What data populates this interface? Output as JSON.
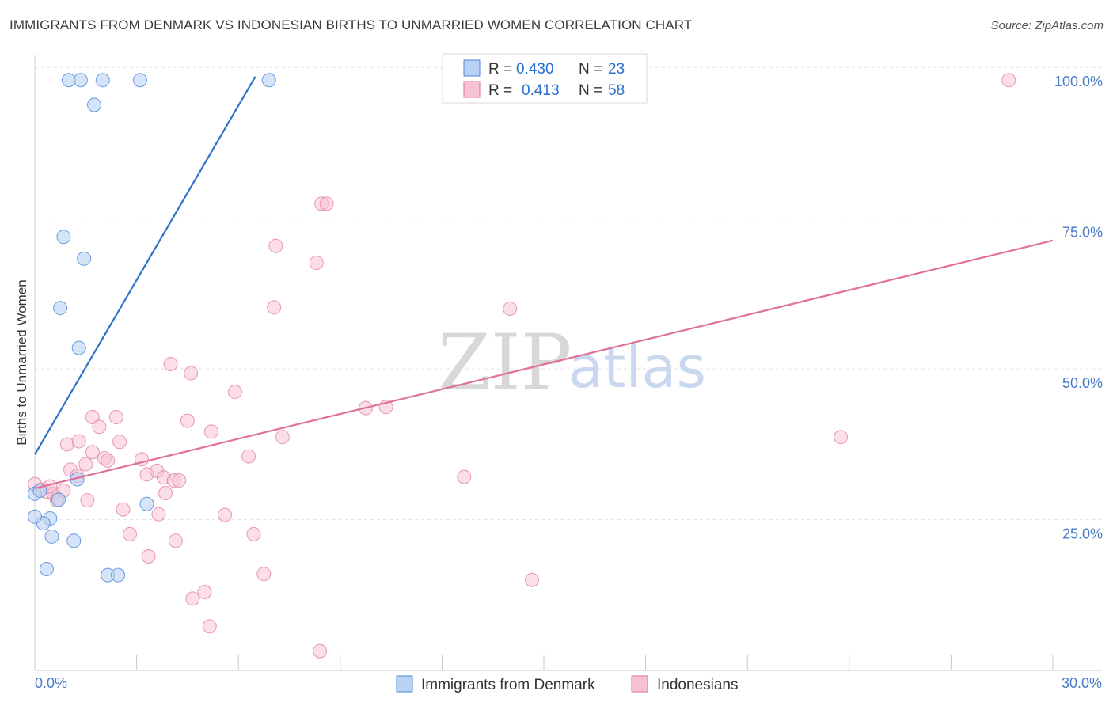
{
  "title": "IMMIGRANTS FROM DENMARK VS INDONESIAN BIRTHS TO UNMARRIED WOMEN CORRELATION CHART",
  "source": "Source: ZipAtlas.com",
  "watermark": {
    "zip": "ZIP",
    "atlas": "atlas"
  },
  "colors": {
    "blue": "#4a86d8",
    "blue_fill": "#b9d2f3",
    "pink": "#e0709a",
    "pink_fill": "#f7c2d4",
    "axis_text": "#4a7bc8"
  },
  "legend": {
    "series1": {
      "r_label": "R =",
      "r_value": "0.430",
      "n_label": "N =",
      "n_value": "23"
    },
    "series2": {
      "r_label": "R =",
      "r_value": "0.413",
      "n_label": "N =",
      "n_value": "58"
    }
  },
  "bottom_legend": {
    "series1": "Immigrants from Denmark",
    "series2": "Indonesians"
  },
  "chart_data": {
    "type": "scatter",
    "title": "IMMIGRANTS FROM DENMARK VS INDONESIAN BIRTHS TO UNMARRIED WOMEN CORRELATION CHART",
    "xlabel": "",
    "ylabel": "Births to Unmarried Women",
    "xlim": [
      0,
      30
    ],
    "ylim": [
      0,
      102
    ],
    "x_tick_labels": [
      "0.0%",
      "30.0%"
    ],
    "y_tick_values": [
      25,
      50,
      75,
      100
    ],
    "y_tick_labels": [
      "25.0%",
      "50.0%",
      "75.0%",
      "100.0%"
    ],
    "grid": true,
    "legend_position": "top-center",
    "series": [
      {
        "name": "Immigrants from Denmark",
        "color": "#4a86d8",
        "points": [
          [
            1.0,
            97.9
          ],
          [
            1.35,
            97.9
          ],
          [
            2.0,
            97.9
          ],
          [
            3.1,
            97.9
          ],
          [
            6.9,
            97.9
          ],
          [
            1.75,
            93.8
          ],
          [
            0.85,
            71.9
          ],
          [
            1.45,
            68.3
          ],
          [
            0.75,
            60.1
          ],
          [
            1.3,
            53.5
          ],
          [
            0.0,
            29.3
          ],
          [
            0.7,
            28.3
          ],
          [
            1.25,
            31.7
          ],
          [
            3.3,
            27.6
          ],
          [
            0.45,
            25.2
          ],
          [
            0.25,
            24.4
          ],
          [
            0.5,
            22.2
          ],
          [
            1.15,
            21.5
          ],
          [
            0.35,
            16.8
          ],
          [
            2.15,
            15.8
          ],
          [
            2.45,
            15.8
          ],
          [
            0.0,
            25.5
          ],
          [
            0.15,
            29.8
          ]
        ],
        "trend": {
          "x": [
            0.0,
            6.5
          ],
          "y": [
            35.8,
            98.5
          ]
        }
      },
      {
        "name": "Indonesians",
        "color": "#e0709a",
        "points": [
          [
            0.0,
            30.9
          ],
          [
            0.2,
            30.0
          ],
          [
            0.35,
            29.6
          ],
          [
            0.55,
            29.3
          ],
          [
            0.85,
            29.8
          ],
          [
            0.65,
            28.2
          ],
          [
            1.05,
            33.3
          ],
          [
            1.25,
            32.3
          ],
          [
            1.5,
            34.2
          ],
          [
            1.7,
            36.2
          ],
          [
            2.05,
            35.2
          ],
          [
            1.55,
            28.2
          ],
          [
            0.95,
            37.5
          ],
          [
            1.3,
            38.0
          ],
          [
            1.7,
            42.0
          ],
          [
            1.9,
            40.4
          ],
          [
            2.4,
            42.0
          ],
          [
            2.5,
            37.9
          ],
          [
            2.15,
            34.8
          ],
          [
            2.6,
            26.7
          ],
          [
            2.8,
            22.6
          ],
          [
            3.15,
            35.0
          ],
          [
            3.3,
            32.5
          ],
          [
            3.6,
            33.1
          ],
          [
            3.8,
            32.0
          ],
          [
            3.85,
            29.4
          ],
          [
            3.65,
            25.9
          ],
          [
            3.35,
            18.9
          ],
          [
            4.1,
            31.5
          ],
          [
            4.25,
            31.5
          ],
          [
            4.5,
            41.4
          ],
          [
            4.15,
            21.5
          ],
          [
            4.6,
            49.3
          ],
          [
            5.2,
            39.6
          ],
          [
            4.0,
            50.8
          ],
          [
            5.6,
            25.8
          ],
          [
            5.9,
            46.2
          ],
          [
            6.3,
            35.5
          ],
          [
            6.45,
            22.6
          ],
          [
            6.75,
            16.0
          ],
          [
            7.3,
            38.7
          ],
          [
            7.1,
            70.4
          ],
          [
            7.05,
            60.2
          ],
          [
            8.3,
            67.6
          ],
          [
            8.45,
            77.4
          ],
          [
            8.6,
            77.4
          ],
          [
            5.0,
            13.0
          ],
          [
            4.65,
            11.9
          ],
          [
            5.15,
            7.3
          ],
          [
            8.4,
            3.2
          ],
          [
            9.75,
            43.5
          ],
          [
            10.35,
            43.7
          ],
          [
            12.65,
            32.1
          ],
          [
            14.0,
            60.0
          ],
          [
            14.65,
            15.0
          ],
          [
            23.75,
            38.7
          ],
          [
            28.7,
            97.9
          ],
          [
            0.45,
            30.5
          ]
        ],
        "trend": {
          "x": [
            0.0,
            30.0
          ],
          "y": [
            30.2,
            71.3
          ]
        }
      }
    ]
  }
}
